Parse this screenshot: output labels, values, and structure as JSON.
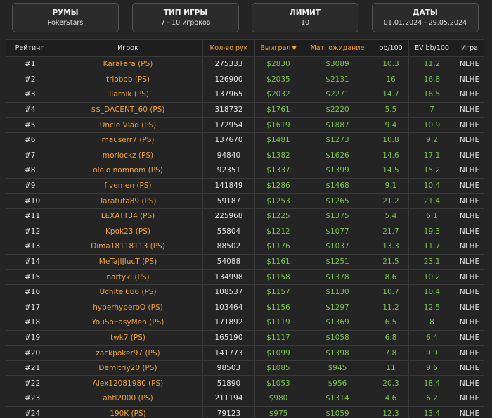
{
  "filters": [
    {
      "title": "РУМЫ",
      "value": "PokerStars"
    },
    {
      "title": "ТИП ИГРЫ",
      "value": "7 - 10 игроков"
    },
    {
      "title": "ЛИМИТ",
      "value": "10"
    },
    {
      "title": "ДАТЫ",
      "value": "01.01.2024 - 29.05.2024"
    }
  ],
  "table": {
    "headers": {
      "rank": "Рейтинг",
      "player": "Игрок",
      "hands": "Кол-во рук",
      "won": "Выиграл",
      "ev": "Мат. ожидание",
      "bb": "bb/100",
      "evbb": "EV bb/100",
      "game": "Игра"
    },
    "sort_icon": "sort-desc-icon",
    "rows": [
      {
        "rank": "#1",
        "player": "KaraFara (PS)",
        "hands": "275333",
        "won": "$2830",
        "ev": "$3089",
        "bb": "10.3",
        "evbb": "11.2",
        "game": "NLHE"
      },
      {
        "rank": "#2",
        "player": "triobob (PS)",
        "hands": "126900",
        "won": "$2035",
        "ev": "$2131",
        "bb": "16",
        "evbb": "16.8",
        "game": "NLHE"
      },
      {
        "rank": "#3",
        "player": "IIIarnik (PS)",
        "hands": "137965",
        "won": "$2032",
        "ev": "$2271",
        "bb": "14.7",
        "evbb": "16.5",
        "game": "NLHE"
      },
      {
        "rank": "#4",
        "player": "$$_DACENT_60 (PS)",
        "hands": "318732",
        "won": "$1761",
        "ev": "$2220",
        "bb": "5.5",
        "evbb": "7",
        "game": "NLHE"
      },
      {
        "rank": "#5",
        "player": "Uncle Vlad (PS)",
        "hands": "172954",
        "won": "$1619",
        "ev": "$1887",
        "bb": "9.4",
        "evbb": "10.9",
        "game": "NLHE"
      },
      {
        "rank": "#6",
        "player": "mauserr7 (PS)",
        "hands": "137670",
        "won": "$1481",
        "ev": "$1273",
        "bb": "10.8",
        "evbb": "9.2",
        "game": "NLHE"
      },
      {
        "rank": "#7",
        "player": "morlockz (PS)",
        "hands": "94840",
        "won": "$1382",
        "ev": "$1626",
        "bb": "14.6",
        "evbb": "17.1",
        "game": "NLHE"
      },
      {
        "rank": "#8",
        "player": "ololo nomnom (PS)",
        "hands": "92351",
        "won": "$1337",
        "ev": "$1399",
        "bb": "14.5",
        "evbb": "15.2",
        "game": "NLHE"
      },
      {
        "rank": "#9",
        "player": "fivemen (PS)",
        "hands": "141849",
        "won": "$1286",
        "ev": "$1468",
        "bb": "9.1",
        "evbb": "10.4",
        "game": "NLHE"
      },
      {
        "rank": "#10",
        "player": "Taratuta89 (PS)",
        "hands": "59187",
        "won": "$1253",
        "ev": "$1265",
        "bb": "21.2",
        "evbb": "21.4",
        "game": "NLHE"
      },
      {
        "rank": "#11",
        "player": "LEXATT34 (PS)",
        "hands": "225968",
        "won": "$1225",
        "ev": "$1375",
        "bb": "5.4",
        "evbb": "6.1",
        "game": "NLHE"
      },
      {
        "rank": "#12",
        "player": "Kpok23 (PS)",
        "hands": "55804",
        "won": "$1212",
        "ev": "$1077",
        "bb": "21.7",
        "evbb": "19.3",
        "game": "NLHE"
      },
      {
        "rank": "#13",
        "player": "Dima18118113 (PS)",
        "hands": "88502",
        "won": "$1176",
        "ev": "$1037",
        "bb": "13.3",
        "evbb": "11.7",
        "game": "NLHE"
      },
      {
        "rank": "#14",
        "player": "MeTaJIJIucT (PS)",
        "hands": "54088",
        "won": "$1161",
        "ev": "$1251",
        "bb": "21.5",
        "evbb": "23.1",
        "game": "NLHE"
      },
      {
        "rank": "#15",
        "player": "nartykl (PS)",
        "hands": "134998",
        "won": "$1158",
        "ev": "$1378",
        "bb": "8.6",
        "evbb": "10.2",
        "game": "NLHE"
      },
      {
        "rank": "#16",
        "player": "Uchitel666 (PS)",
        "hands": "108537",
        "won": "$1157",
        "ev": "$1130",
        "bb": "10.7",
        "evbb": "10.4",
        "game": "NLHE"
      },
      {
        "rank": "#17",
        "player": "hyperhyperoO (PS)",
        "hands": "103464",
        "won": "$1156",
        "ev": "$1297",
        "bb": "11.2",
        "evbb": "12.5",
        "game": "NLHE"
      },
      {
        "rank": "#18",
        "player": "YouSoEasyMen (PS)",
        "hands": "171892",
        "won": "$1119",
        "ev": "$1369",
        "bb": "6.5",
        "evbb": "8",
        "game": "NLHE"
      },
      {
        "rank": "#19",
        "player": "twk7 (PS)",
        "hands": "165190",
        "won": "$1117",
        "ev": "$1058",
        "bb": "6.8",
        "evbb": "6.4",
        "game": "NLHE"
      },
      {
        "rank": "#20",
        "player": "zackpoker97 (PS)",
        "hands": "141773",
        "won": "$1099",
        "ev": "$1398",
        "bb": "7.8",
        "evbb": "9.9",
        "game": "NLHE"
      },
      {
        "rank": "#21",
        "player": "Demitriy20 (PS)",
        "hands": "98503",
        "won": "$1085",
        "ev": "$945",
        "bb": "11",
        "evbb": "9.6",
        "game": "NLHE"
      },
      {
        "rank": "#22",
        "player": "Alex12081980 (PS)",
        "hands": "51890",
        "won": "$1053",
        "ev": "$956",
        "bb": "20.3",
        "evbb": "18.4",
        "game": "NLHE"
      },
      {
        "rank": "#23",
        "player": "ahtl2000 (PS)",
        "hands": "211194",
        "won": "$980",
        "ev": "$1314",
        "bb": "4.6",
        "evbb": "6.2",
        "game": "NLHE"
      },
      {
        "rank": "#24",
        "player": "190K (PS)",
        "hands": "79123",
        "won": "$975",
        "ev": "$1059",
        "bb": "12.3",
        "evbb": "13.4",
        "game": "NLHE"
      }
    ]
  },
  "colors": {
    "background": "#242424",
    "accent_orange": "#f0a13c",
    "positive_green": "#79c34f",
    "border": "#3a3a3a"
  }
}
